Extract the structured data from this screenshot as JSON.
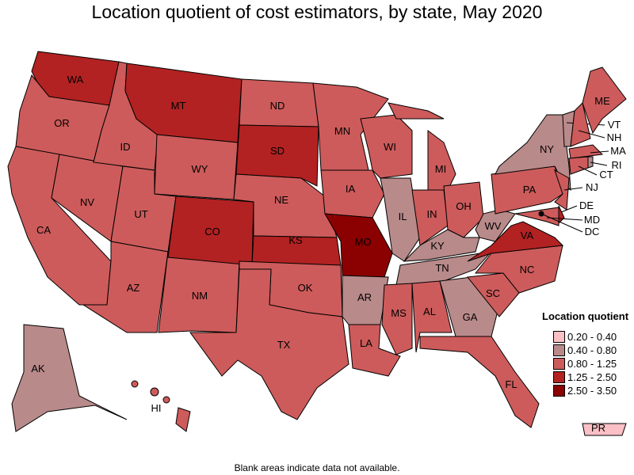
{
  "title": "Location quotient of cost estimators, by state, May 2020",
  "note": "Blank areas indicate data not available.",
  "legend": {
    "title": "Location quotient",
    "items": [
      {
        "label": "0.20 - 0.40",
        "color": "#fbc0c6"
      },
      {
        "label": "0.40 - 0.80",
        "color": "#b98a8a"
      },
      {
        "label": "0.80 - 1.25",
        "color": "#cd5b5b"
      },
      {
        "label": "1.25 - 2.50",
        "color": "#b22222"
      },
      {
        "label": "2.50 - 3.50",
        "color": "#8b0000"
      }
    ]
  },
  "states": [
    {
      "abbr": "WA",
      "cls": 3
    },
    {
      "abbr": "OR",
      "cls": 2
    },
    {
      "abbr": "CA",
      "cls": 2
    },
    {
      "abbr": "NV",
      "cls": 2
    },
    {
      "abbr": "ID",
      "cls": 2
    },
    {
      "abbr": "MT",
      "cls": 3
    },
    {
      "abbr": "WY",
      "cls": 2
    },
    {
      "abbr": "UT",
      "cls": 2
    },
    {
      "abbr": "AZ",
      "cls": 2
    },
    {
      "abbr": "NM",
      "cls": 2
    },
    {
      "abbr": "CO",
      "cls": 3
    },
    {
      "abbr": "ND",
      "cls": 2
    },
    {
      "abbr": "SD",
      "cls": 3
    },
    {
      "abbr": "NE",
      "cls": 2
    },
    {
      "abbr": "KS",
      "cls": 3
    },
    {
      "abbr": "OK",
      "cls": 2
    },
    {
      "abbr": "TX",
      "cls": 2
    },
    {
      "abbr": "MN",
      "cls": 2
    },
    {
      "abbr": "IA",
      "cls": 2
    },
    {
      "abbr": "MO",
      "cls": 4
    },
    {
      "abbr": "AR",
      "cls": 1
    },
    {
      "abbr": "LA",
      "cls": 2
    },
    {
      "abbr": "WI",
      "cls": 2
    },
    {
      "abbr": "IL",
      "cls": 1
    },
    {
      "abbr": "MI",
      "cls": 2
    },
    {
      "abbr": "IN",
      "cls": 2
    },
    {
      "abbr": "OH",
      "cls": 2
    },
    {
      "abbr": "KY",
      "cls": 1
    },
    {
      "abbr": "TN",
      "cls": 1
    },
    {
      "abbr": "MS",
      "cls": 2
    },
    {
      "abbr": "AL",
      "cls": 2
    },
    {
      "abbr": "GA",
      "cls": 1
    },
    {
      "abbr": "FL",
      "cls": 2
    },
    {
      "abbr": "SC",
      "cls": 2
    },
    {
      "abbr": "NC",
      "cls": 2
    },
    {
      "abbr": "VA",
      "cls": 3
    },
    {
      "abbr": "WV",
      "cls": 1
    },
    {
      "abbr": "PA",
      "cls": 2
    },
    {
      "abbr": "NY",
      "cls": 1
    },
    {
      "abbr": "VT",
      "cls": 1
    },
    {
      "abbr": "NH",
      "cls": 2
    },
    {
      "abbr": "ME",
      "cls": 2
    },
    {
      "abbr": "MA",
      "cls": 2
    },
    {
      "abbr": "CT",
      "cls": 2
    },
    {
      "abbr": "RI",
      "cls": 1
    },
    {
      "abbr": "NJ",
      "cls": 2
    },
    {
      "abbr": "DE",
      "cls": 3
    },
    {
      "abbr": "MD",
      "cls": 2
    },
    {
      "abbr": "DC",
      "cls": 4
    },
    {
      "abbr": "AK",
      "cls": 1
    },
    {
      "abbr": "HI",
      "cls": 2
    },
    {
      "abbr": "PR",
      "cls": 0
    }
  ]
}
